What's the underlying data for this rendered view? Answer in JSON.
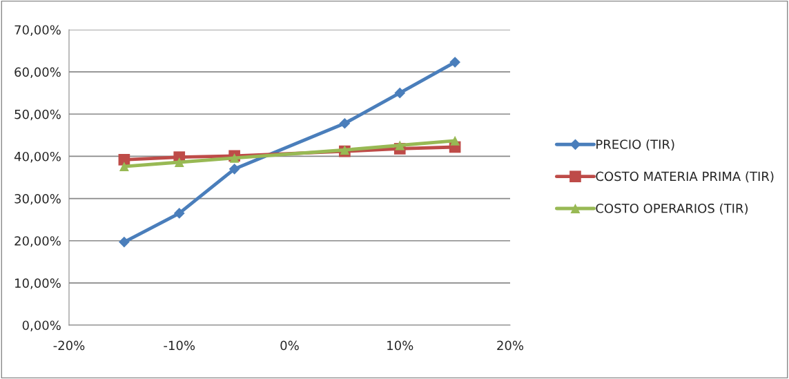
{
  "chart_data": {
    "type": "line",
    "x": [
      -15,
      -10,
      -5,
      5,
      10,
      15
    ],
    "series": [
      {
        "name": "PRECIO (TIR)",
        "color": "#4a7ebb",
        "marker": "diamond",
        "values": [
          19.7,
          26.5,
          37.0,
          47.8,
          55.0,
          62.3
        ]
      },
      {
        "name": "COSTO MATERIA PRIMA (TIR)",
        "color": "#be4b48",
        "marker": "square",
        "values": [
          39.2,
          39.8,
          40.1,
          41.2,
          41.8,
          42.2
        ]
      },
      {
        "name": "COSTO OPERARIOS (TIR)",
        "color": "#98b954",
        "marker": "triangle",
        "values": [
          37.6,
          38.6,
          39.6,
          41.5,
          42.6,
          43.7
        ]
      }
    ],
    "xlim": [
      -20,
      20
    ],
    "xticks": [
      {
        "value": -20,
        "label": "-20%"
      },
      {
        "value": -10,
        "label": "-10%"
      },
      {
        "value": 0,
        "label": "0%"
      },
      {
        "value": 10,
        "label": "10%"
      },
      {
        "value": 20,
        "label": "20%"
      }
    ],
    "ylim": [
      0,
      70
    ],
    "yticks": [
      {
        "value": 0,
        "label": "0,00%"
      },
      {
        "value": 10,
        "label": "10,00%"
      },
      {
        "value": 20,
        "label": "20,00%"
      },
      {
        "value": 30,
        "label": "30,00%"
      },
      {
        "value": 40,
        "label": "40,00%"
      },
      {
        "value": 50,
        "label": "50,00%"
      },
      {
        "value": 60,
        "label": "60,00%"
      },
      {
        "value": 70,
        "label": "70,00%"
      }
    ],
    "grid": "y",
    "legend": "right",
    "line_style": "solid"
  }
}
